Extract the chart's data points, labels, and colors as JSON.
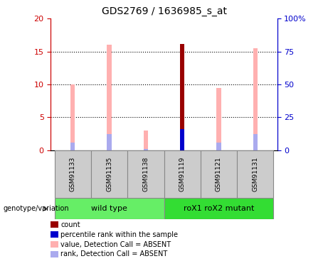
{
  "title": "GDS2769 / 1636985_s_at",
  "samples": [
    "GSM91133",
    "GSM91135",
    "GSM91138",
    "GSM91119",
    "GSM91121",
    "GSM91131"
  ],
  "groups": [
    {
      "label": "wild type",
      "color": "#66DD66",
      "start": 0,
      "end": 2
    },
    {
      "label": "roX1 roX2 mutant",
      "color": "#33CC33",
      "start": 3,
      "end": 5
    }
  ],
  "value_absent": [
    10.0,
    16.0,
    3.0,
    null,
    9.5,
    15.5
  ],
  "rank_absent": [
    1.2,
    2.5,
    0.2,
    null,
    1.2,
    2.5
  ],
  "count": [
    null,
    null,
    null,
    16.2,
    null,
    null
  ],
  "percentile": [
    null,
    null,
    null,
    16.0,
    null,
    null
  ],
  "ylim_left": [
    0,
    20
  ],
  "ylim_right": [
    0,
    100
  ],
  "yticks_left": [
    0,
    5,
    10,
    15,
    20
  ],
  "yticks_right": [
    0,
    25,
    50,
    75,
    100
  ],
  "ytick_labels_right": [
    "0",
    "25",
    "50",
    "75",
    "100%"
  ],
  "left_axis_color": "#CC0000",
  "right_axis_color": "#0000CC",
  "bar_width": 0.12,
  "pink_color": "#FFB0B0",
  "lavender_color": "#AAAAEE",
  "dark_red_color": "#990000",
  "blue_color": "#0000CC",
  "legend_items": [
    {
      "color": "#990000",
      "label": "count"
    },
    {
      "color": "#0000CC",
      "label": "percentile rank within the sample"
    },
    {
      "color": "#FFB0B0",
      "label": "value, Detection Call = ABSENT"
    },
    {
      "color": "#AAAAEE",
      "label": "rank, Detection Call = ABSENT"
    }
  ],
  "genotype_label": "genotype/variation"
}
